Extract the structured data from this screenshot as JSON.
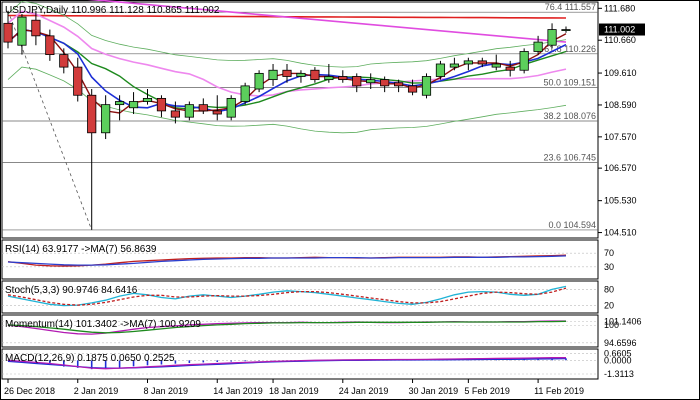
{
  "colors": {
    "frame": "#000000",
    "grid": "#bcbcbc",
    "bull_body": "#5ccf5c",
    "bear_body": "#d23c3c",
    "wick": "#000000",
    "ma_red": "#e02020",
    "ma_magenta": "#e04ce0",
    "ma_pink": "#ee88ee",
    "ma_darkred": "#8b0f0f",
    "ma_blue": "#1d2fd6",
    "ma_green": "#1e8a1e",
    "bb_green": "#5fae5f",
    "fib_line": "#606060",
    "fib_text": "#555555",
    "price_box_bg": "#000000",
    "price_box_fg": "#ffffff",
    "rsi_line": "#c02020",
    "rsi_ma": "#2b3fcf",
    "stoch_main": "#1fb3d6",
    "stoch_signal": "#c02020",
    "momentum_line": "#b21ab2",
    "momentum_ma": "#1e8a1e",
    "macd_hist": "#1d2fd6",
    "macd_signal": "#b21ab2",
    "macd_line": "#1d2fd6"
  },
  "chart_data": [
    {
      "type": "candlestick",
      "title": "USDJPY,Daily  110.996 111.128 110.865 111.002",
      "price_ticks": [
        "111.680",
        "110.660",
        "109.610",
        "108.590",
        "107.570",
        "106.570",
        "105.530",
        "104.510"
      ],
      "price_tick_values": [
        111.68,
        110.66,
        109.61,
        108.59,
        107.57,
        106.57,
        105.53,
        104.51
      ],
      "price_range": [
        104.4,
        111.85
      ],
      "current_price": "111.002",
      "current_price_value": 111.002,
      "fib_levels": [
        {
          "label": "76.4 111.557",
          "value": 111.557
        },
        {
          "label": "61.8 110.226",
          "value": 110.226
        },
        {
          "label": "50.0 109.151",
          "value": 109.151
        },
        {
          "label": "38.2 108.076",
          "value": 108.076
        },
        {
          "label": "23.6 106.745",
          "value": 106.745
        },
        {
          "label": "0.0 104.594",
          "value": 104.594
        }
      ],
      "x_labels": [
        "26 Dec 2018",
        "2 Jan 2019",
        "8 Jan 2019",
        "14 Jan 2019",
        "18 Jan 2019",
        "24 Jan 2019",
        "30 Jan 2019",
        "5 Feb 2019",
        "11 Feb 2019"
      ],
      "x_label_bar_index": [
        0,
        5,
        10,
        15,
        19,
        24,
        29,
        33,
        38
      ],
      "candles": [
        {
          "o": 111.2,
          "h": 111.6,
          "l": 110.4,
          "c": 110.6
        },
        {
          "o": 110.5,
          "h": 111.5,
          "l": 110.2,
          "c": 111.4
        },
        {
          "o": 111.3,
          "h": 111.6,
          "l": 110.5,
          "c": 110.8
        },
        {
          "o": 110.8,
          "h": 111.0,
          "l": 110.0,
          "c": 110.2
        },
        {
          "o": 110.2,
          "h": 110.4,
          "l": 109.6,
          "c": 109.8
        },
        {
          "o": 109.8,
          "h": 110.1,
          "l": 108.7,
          "c": 108.9
        },
        {
          "o": 108.9,
          "h": 109.1,
          "l": 104.6,
          "c": 107.7
        },
        {
          "o": 107.7,
          "h": 108.9,
          "l": 107.5,
          "c": 108.6
        },
        {
          "o": 108.6,
          "h": 108.9,
          "l": 108.1,
          "c": 108.7
        },
        {
          "o": 108.5,
          "h": 109.0,
          "l": 108.3,
          "c": 108.7
        },
        {
          "o": 108.7,
          "h": 109.1,
          "l": 108.6,
          "c": 108.8
        },
        {
          "o": 108.8,
          "h": 108.9,
          "l": 108.2,
          "c": 108.4
        },
        {
          "o": 108.4,
          "h": 108.7,
          "l": 108.0,
          "c": 108.2
        },
        {
          "o": 108.2,
          "h": 108.7,
          "l": 108.1,
          "c": 108.6
        },
        {
          "o": 108.6,
          "h": 108.8,
          "l": 108.3,
          "c": 108.4
        },
        {
          "o": 108.4,
          "h": 108.9,
          "l": 108.1,
          "c": 108.3
        },
        {
          "o": 108.2,
          "h": 108.9,
          "l": 108.1,
          "c": 108.8
        },
        {
          "o": 108.7,
          "h": 109.3,
          "l": 108.6,
          "c": 109.2
        },
        {
          "o": 109.1,
          "h": 109.7,
          "l": 109.0,
          "c": 109.6
        },
        {
          "o": 109.4,
          "h": 109.9,
          "l": 109.2,
          "c": 109.7
        },
        {
          "o": 109.7,
          "h": 109.9,
          "l": 109.3,
          "c": 109.5
        },
        {
          "o": 109.5,
          "h": 109.7,
          "l": 109.3,
          "c": 109.6
        },
        {
          "o": 109.7,
          "h": 109.8,
          "l": 109.3,
          "c": 109.4
        },
        {
          "o": 109.4,
          "h": 109.9,
          "l": 109.3,
          "c": 109.5
        },
        {
          "o": 109.5,
          "h": 109.7,
          "l": 109.3,
          "c": 109.4
        },
        {
          "o": 109.5,
          "h": 109.6,
          "l": 109.0,
          "c": 109.2
        },
        {
          "o": 109.3,
          "h": 109.6,
          "l": 109.1,
          "c": 109.4
        },
        {
          "o": 109.4,
          "h": 109.5,
          "l": 109.0,
          "c": 109.2
        },
        {
          "o": 109.3,
          "h": 109.4,
          "l": 109.0,
          "c": 109.2
        },
        {
          "o": 109.2,
          "h": 109.4,
          "l": 108.9,
          "c": 109.0
        },
        {
          "o": 108.9,
          "h": 109.6,
          "l": 108.8,
          "c": 109.5
        },
        {
          "o": 109.5,
          "h": 110.0,
          "l": 109.4,
          "c": 109.9
        },
        {
          "o": 109.8,
          "h": 110.1,
          "l": 109.7,
          "c": 109.9
        },
        {
          "o": 109.9,
          "h": 110.1,
          "l": 109.7,
          "c": 110.0
        },
        {
          "o": 110.0,
          "h": 110.1,
          "l": 109.8,
          "c": 109.9
        },
        {
          "o": 109.8,
          "h": 110.2,
          "l": 109.7,
          "c": 109.9
        },
        {
          "o": 109.8,
          "h": 110.0,
          "l": 109.5,
          "c": 109.7
        },
        {
          "o": 109.7,
          "h": 110.4,
          "l": 109.6,
          "c": 110.3
        },
        {
          "o": 110.3,
          "h": 110.8,
          "l": 110.2,
          "c": 110.6
        },
        {
          "o": 110.5,
          "h": 111.2,
          "l": 110.4,
          "c": 111.0
        },
        {
          "o": 111.0,
          "h": 111.1,
          "l": 110.9,
          "c": 111.0
        }
      ]
    },
    {
      "type": "line",
      "title": "RSI(14) 63.9177  ->MA(7) 56.8639",
      "ticks": [
        "70",
        "30"
      ],
      "tick_values": [
        70,
        30
      ],
      "range": [
        0,
        100
      ],
      "series": [
        {
          "values": [
            45,
            40,
            35,
            33,
            32,
            33,
            35,
            38,
            42,
            46,
            48,
            50,
            52,
            54,
            55,
            56,
            56,
            57,
            57,
            56,
            56,
            57,
            58,
            57,
            57,
            56,
            56,
            57,
            58,
            58,
            58,
            58,
            59,
            59,
            58,
            59,
            60,
            61,
            62,
            63,
            64
          ]
        },
        {
          "values": [
            44,
            42,
            40,
            38,
            36,
            35,
            35,
            36,
            38,
            40,
            43,
            46,
            48,
            50,
            52,
            53,
            54,
            55,
            55,
            56,
            56,
            56,
            56,
            57,
            57,
            57,
            56,
            56,
            57,
            57,
            57,
            57,
            58,
            58,
            58,
            58,
            59,
            59,
            60,
            61,
            62
          ]
        }
      ]
    },
    {
      "type": "line",
      "title": "Stoch(5,3,3) 90.9746 84.6416",
      "ticks": [
        "80",
        "20"
      ],
      "tick_values": [
        80,
        20
      ],
      "range": [
        0,
        100
      ],
      "series": [
        {
          "values": [
            55,
            45,
            35,
            25,
            20,
            22,
            30,
            40,
            55,
            65,
            60,
            50,
            45,
            55,
            60,
            55,
            50,
            55,
            62,
            70,
            75,
            72,
            68,
            62,
            55,
            48,
            42,
            35,
            28,
            25,
            32,
            45,
            60,
            70,
            72,
            70,
            62,
            58,
            62,
            80,
            91
          ]
        },
        {
          "values": [
            60,
            52,
            42,
            32,
            25,
            22,
            25,
            32,
            42,
            52,
            58,
            58,
            52,
            52,
            55,
            57,
            55,
            55,
            57,
            62,
            68,
            72,
            72,
            68,
            62,
            55,
            48,
            42,
            35,
            30,
            30,
            35,
            45,
            55,
            65,
            70,
            68,
            64,
            62,
            70,
            85
          ]
        }
      ]
    },
    {
      "type": "line",
      "title": "Momentum(14) 101.3402  ->MA(7) 100.9209",
      "ticks": [
        "101.1406",
        "100",
        "94.6596"
      ],
      "tick_values": [
        101.1406,
        100,
        94.6596
      ],
      "range": [
        94.0,
        102.2
      ],
      "series": [
        {
          "values": [
            100.0,
            99.6,
            99.0,
            98.4,
            97.8,
            97.4,
            97.3,
            97.6,
            98.2,
            98.8,
            99.3,
            99.6,
            99.8,
            100.1,
            100.3,
            100.5,
            100.6,
            100.7,
            100.8,
            100.8,
            100.8,
            100.9,
            100.8,
            100.8,
            100.9,
            101.0,
            100.9,
            100.8,
            100.8,
            100.9,
            101.0,
            101.0,
            101.1,
            101.0,
            101.0,
            101.0,
            101.1,
            101.1,
            101.2,
            101.3,
            101.3
          ]
        },
        {
          "values": [
            100.1,
            99.9,
            99.6,
            99.2,
            98.8,
            98.3,
            97.9,
            97.7,
            97.8,
            98.1,
            98.5,
            98.9,
            99.3,
            99.6,
            99.9,
            100.1,
            100.3,
            100.5,
            100.6,
            100.7,
            100.7,
            100.8,
            100.8,
            100.8,
            100.8,
            100.9,
            100.9,
            100.9,
            100.9,
            100.9,
            100.9,
            101.0,
            101.0,
            101.0,
            101.0,
            101.0,
            101.0,
            101.0,
            101.1,
            101.1,
            101.2
          ]
        }
      ]
    },
    {
      "type": "bar+line",
      "title": "MACD(12,26,9) 0.1875  0.0650  0.2525",
      "ticks": [
        "0.6605",
        "0.0000",
        "-1.3113"
      ],
      "tick_values": [
        0.6605,
        0.0,
        -1.3113
      ],
      "range": [
        -1.6,
        0.8
      ],
      "histogram": [
        -0.05,
        -0.15,
        -0.3,
        -0.45,
        -0.6,
        -0.72,
        -0.85,
        -0.8,
        -0.7,
        -0.58,
        -0.48,
        -0.4,
        -0.32,
        -0.26,
        -0.2,
        -0.16,
        -0.12,
        -0.08,
        -0.05,
        -0.02,
        0.0,
        0.02,
        0.03,
        0.04,
        0.05,
        0.05,
        0.06,
        0.06,
        0.06,
        0.05,
        0.06,
        0.08,
        0.1,
        0.11,
        0.12,
        0.13,
        0.14,
        0.15,
        0.16,
        0.18,
        0.19
      ],
      "series": [
        {
          "values": [
            -0.1,
            -0.2,
            -0.3,
            -0.4,
            -0.5,
            -0.6,
            -0.7,
            -0.75,
            -0.75,
            -0.72,
            -0.68,
            -0.62,
            -0.56,
            -0.5,
            -0.44,
            -0.38,
            -0.32,
            -0.26,
            -0.2,
            -0.15,
            -0.11,
            -0.08,
            -0.05,
            -0.03,
            -0.01,
            0.0,
            0.01,
            0.02,
            0.03,
            0.03,
            0.04,
            0.05,
            0.06,
            0.07,
            0.08,
            0.09,
            0.1,
            0.11,
            0.13,
            0.15,
            0.17
          ]
        },
        {
          "values": [
            0.0,
            -0.1,
            -0.2,
            -0.3,
            -0.45,
            -0.6,
            -0.75,
            -0.8,
            -0.75,
            -0.7,
            -0.62,
            -0.55,
            -0.48,
            -0.42,
            -0.36,
            -0.3,
            -0.25,
            -0.2,
            -0.15,
            -0.1,
            -0.06,
            -0.03,
            0.0,
            0.02,
            0.04,
            0.05,
            0.06,
            0.07,
            0.08,
            0.08,
            0.09,
            0.11,
            0.13,
            0.15,
            0.17,
            0.19,
            0.2,
            0.21,
            0.23,
            0.25,
            0.25
          ]
        }
      ]
    }
  ]
}
